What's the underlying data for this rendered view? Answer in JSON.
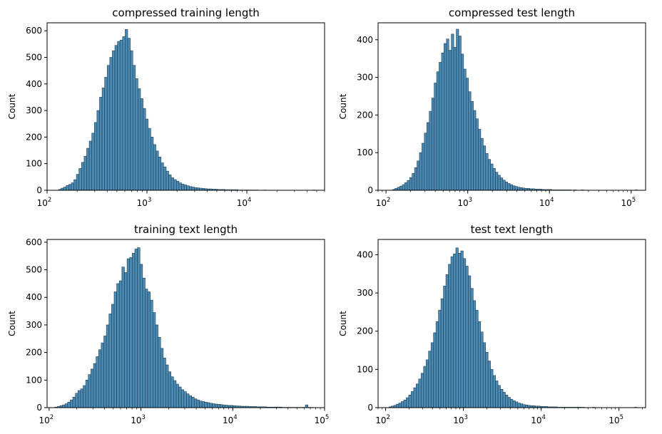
{
  "colors": {
    "bar_fill": "#4a8ab3",
    "bar_edge": "#1f3f55",
    "axes": "#000000",
    "background": "#ffffff"
  },
  "chart_data": [
    {
      "type": "bar",
      "title": "compressed training length",
      "xlabel": "",
      "ylabel": "Count",
      "x_scale": "log",
      "xlim": [
        100,
        60000
      ],
      "ylim": [
        0,
        630
      ],
      "yticks": [
        0,
        100,
        200,
        300,
        400,
        500,
        600
      ],
      "xticks": [
        100,
        1000,
        10000
      ],
      "xtick_labels": [
        {
          "base": "10",
          "exp": "2"
        },
        {
          "base": "10",
          "exp": "3"
        },
        {
          "base": "10",
          "exp": "4"
        }
      ],
      "bin_range": [
        130,
        48000
      ],
      "values": [
        3,
        8,
        12,
        18,
        22,
        28,
        40,
        60,
        82,
        105,
        128,
        158,
        185,
        215,
        255,
        300,
        350,
        385,
        425,
        470,
        500,
        525,
        545,
        560,
        565,
        578,
        605,
        572,
        525,
        470,
        420,
        382,
        345,
        308,
        268,
        233,
        200,
        172,
        148,
        125,
        103,
        88,
        72,
        58,
        47,
        40,
        34,
        28,
        23,
        20,
        17,
        14,
        12,
        10,
        9,
        8,
        7,
        6,
        5,
        5,
        4,
        4,
        3,
        3,
        3,
        2,
        2,
        2,
        2,
        2,
        1,
        1,
        1,
        1,
        1,
        1,
        1,
        1,
        0,
        0,
        1,
        0,
        0,
        0,
        0,
        0,
        0,
        0,
        0,
        0,
        0,
        0,
        0,
        0,
        0,
        0,
        0,
        0,
        0,
        1
      ]
    },
    {
      "type": "bar",
      "title": "compressed test length",
      "xlabel": "",
      "ylabel": "Count",
      "x_scale": "log",
      "xlim": [
        80,
        150000
      ],
      "ylim": [
        0,
        445
      ],
      "yticks": [
        0,
        100,
        200,
        300,
        400
      ],
      "xticks": [
        100,
        1000,
        10000,
        100000
      ],
      "xtick_labels": [
        {
          "base": "10",
          "exp": "2"
        },
        {
          "base": "10",
          "exp": "3"
        },
        {
          "base": "10",
          "exp": "4"
        },
        {
          "base": "10",
          "exp": "5"
        }
      ],
      "bin_range": [
        120,
        120000
      ],
      "values": [
        2,
        5,
        8,
        11,
        15,
        20,
        26,
        34,
        45,
        60,
        78,
        100,
        125,
        152,
        180,
        210,
        245,
        285,
        315,
        340,
        365,
        390,
        402,
        372,
        415,
        380,
        428,
        410,
        362,
        322,
        298,
        262,
        236,
        212,
        190,
        162,
        138,
        118,
        98,
        82,
        70,
        58,
        48,
        40,
        33,
        27,
        22,
        18,
        15,
        12,
        10,
        8,
        7,
        6,
        5,
        5,
        4,
        4,
        3,
        3,
        3,
        2,
        2,
        2,
        2,
        1,
        1,
        1,
        1,
        1,
        1,
        1,
        1,
        0,
        1,
        0,
        0,
        1,
        0,
        0,
        0,
        0,
        0,
        0,
        0,
        0,
        0,
        0,
        0,
        0,
        0,
        0,
        0,
        0,
        0,
        0,
        0,
        0,
        0,
        1
      ]
    },
    {
      "type": "bar",
      "title": "training text length",
      "xlabel": "",
      "ylabel": "Count",
      "x_scale": "log",
      "xlim": [
        95,
        100000
      ],
      "ylim": [
        0,
        610
      ],
      "yticks": [
        0,
        100,
        200,
        300,
        400,
        500,
        600
      ],
      "xticks": [
        100,
        1000,
        10000,
        100000
      ],
      "xtick_labels": [
        {
          "base": "10",
          "exp": "2"
        },
        {
          "base": "10",
          "exp": "3"
        },
        {
          "base": "10",
          "exp": "4"
        },
        {
          "base": "10",
          "exp": "5"
        }
      ],
      "bin_range": [
        115,
        75000
      ],
      "values": [
        2,
        4,
        7,
        10,
        14,
        20,
        28,
        38,
        52,
        62,
        68,
        80,
        100,
        120,
        140,
        160,
        185,
        210,
        235,
        260,
        300,
        340,
        375,
        420,
        450,
        460,
        510,
        490,
        540,
        545,
        560,
        575,
        580,
        520,
        470,
        430,
        420,
        390,
        345,
        300,
        255,
        215,
        180,
        155,
        130,
        112,
        98,
        85,
        75,
        65,
        58,
        50,
        43,
        38,
        32,
        28,
        24,
        22,
        20,
        18,
        16,
        14,
        13,
        12,
        11,
        10,
        9,
        8,
        8,
        7,
        6,
        6,
        5,
        5,
        5,
        4,
        4,
        4,
        3,
        3,
        3,
        3,
        2,
        2,
        2,
        2,
        2,
        2,
        1,
        1,
        1,
        1,
        1,
        1,
        1,
        1,
        1,
        10,
        1,
        1
      ]
    },
    {
      "type": "bar",
      "title": "test text length",
      "xlabel": "",
      "ylabel": "Count",
      "x_scale": "log",
      "xlim": [
        80,
        220000
      ],
      "ylim": [
        0,
        440
      ],
      "yticks": [
        0,
        100,
        200,
        300,
        400
      ],
      "xticks": [
        100,
        1000,
        10000,
        100000
      ],
      "xtick_labels": [
        {
          "base": "10",
          "exp": "2"
        },
        {
          "base": "10",
          "exp": "3"
        },
        {
          "base": "10",
          "exp": "4"
        },
        {
          "base": "10",
          "exp": "5"
        }
      ],
      "bin_range": [
        110,
        170000
      ],
      "values": [
        2,
        4,
        6,
        9,
        12,
        16,
        20,
        26,
        33,
        42,
        52,
        62,
        75,
        90,
        108,
        125,
        148,
        170,
        196,
        225,
        255,
        285,
        318,
        348,
        375,
        395,
        402,
        418,
        404,
        410,
        390,
        370,
        345,
        312,
        280,
        255,
        225,
        198,
        170,
        145,
        122,
        100,
        84,
        70,
        58,
        48,
        40,
        33,
        27,
        22,
        18,
        15,
        12,
        10,
        8,
        7,
        6,
        5,
        5,
        4,
        4,
        3,
        3,
        3,
        2,
        2,
        2,
        2,
        1,
        1,
        1,
        1,
        1,
        1,
        1,
        1,
        1,
        1,
        1,
        0,
        0,
        0,
        1,
        0,
        0,
        0,
        0,
        0,
        0,
        0,
        0,
        0,
        0,
        0,
        0,
        0,
        0,
        0,
        0,
        1
      ]
    }
  ]
}
